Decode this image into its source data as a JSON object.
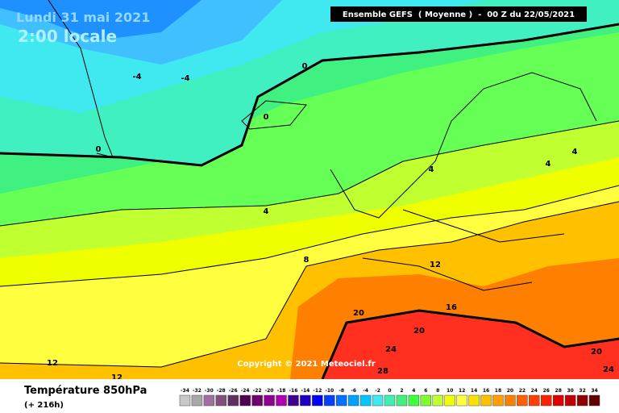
{
  "header": {
    "date": "Lundi 31 mai 2021",
    "time": "2:00 locale",
    "model": "Ensemble GEFS  ( Moyenne )  -  00 Z du 22/05/2021"
  },
  "copyright": "Copyright © 2021 Meteociel.fr",
  "footer": {
    "title": "Température 850hPa",
    "subtitle": "(+ 216h)"
  },
  "contour_labels": [
    "-4",
    "-4",
    "0",
    "0",
    "0",
    "4",
    "4",
    "4",
    "4",
    "8",
    "12",
    "12",
    "12",
    "16",
    "20",
    "20",
    "20",
    "24",
    "24",
    "28"
  ],
  "legend": {
    "ticks": [
      -34,
      -32,
      -30,
      -28,
      -26,
      -24,
      -22,
      -20,
      -18,
      -16,
      -14,
      -12,
      -10,
      -8,
      -6,
      -4,
      -2,
      0,
      2,
      4,
      6,
      8,
      10,
      12,
      14,
      16,
      18,
      20,
      22,
      24,
      26,
      28,
      30,
      32,
      34
    ],
    "colors": [
      "#c8c8c8",
      "#a8a8a8",
      "#a070a0",
      "#805080",
      "#603060",
      "#500050",
      "#700070",
      "#900090",
      "#b000b0",
      "#400090",
      "#2000c0",
      "#0000ff",
      "#0040ff",
      "#0070ff",
      "#00a0ff",
      "#00c8ff",
      "#40e8f0",
      "#40f0b0",
      "#40f080",
      "#40ff40",
      "#80ff30",
      "#c0ff30",
      "#f0ff00",
      "#ffff40",
      "#ffe000",
      "#ffc000",
      "#ffa000",
      "#ff8000",
      "#ff6000",
      "#ff4000",
      "#ff2000",
      "#e00000",
      "#c00000",
      "#900000",
      "#600000"
    ]
  }
}
